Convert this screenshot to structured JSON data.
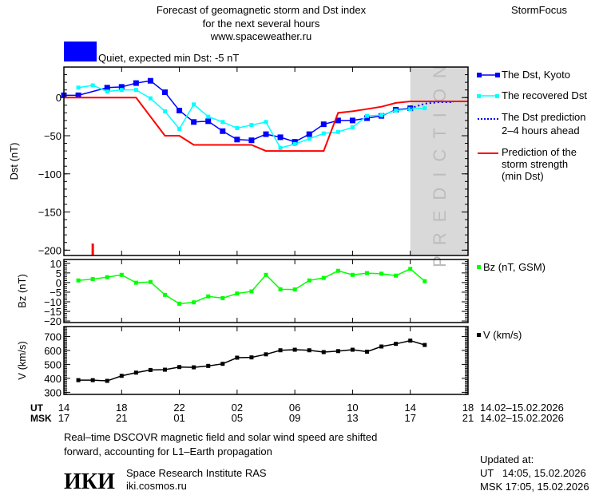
{
  "header": {
    "title_line1": "Forecast of geomagnetic storm and Dst index",
    "title_line2": "for the next several hours",
    "site": "www.spaceweather.ru",
    "brand": "StormFocus",
    "status_text": "Quiet, expected min Dst: -5 nT",
    "status_color": "#0000ff"
  },
  "chart_data": [
    {
      "type": "line",
      "ylabel": "Dst (nT)",
      "ylim": [
        -207,
        40
      ],
      "yticks": [
        0,
        -50,
        -100,
        -150,
        -200
      ],
      "ytick_labels": [
        "0",
        "−50",
        "−100",
        "−150",
        "−200"
      ],
      "xlim": [
        "2026-02-14T14:00",
        "2026-02-15T18:00"
      ],
      "prediction_zone": {
        "from": "2026-02-15T14:00",
        "to": "2026-02-15T18:00",
        "label": "PREDICTION",
        "color": "#d9d9d9"
      },
      "marker_time": "2026-02-14T16:00",
      "series": [
        {
          "name": "The Dst, Kyoto",
          "color": "#0000ff",
          "style": "line-large-markers",
          "points": [
            [
              "2026-02-14T14:00",
              3
            ],
            [
              "2026-02-14T15:00",
              3
            ],
            [
              "2026-02-14T17:00",
              13
            ],
            [
              "2026-02-14T18:00",
              14
            ],
            [
              "2026-02-14T19:00",
              19
            ],
            [
              "2026-02-14T20:00",
              22
            ],
            [
              "2026-02-14T21:00",
              7
            ],
            [
              "2026-02-14T22:00",
              -17
            ],
            [
              "2026-02-14T23:00",
              -32
            ],
            [
              "2026-02-15T00:00",
              -31
            ],
            [
              "2026-02-15T01:00",
              -44
            ],
            [
              "2026-02-15T02:00",
              -55
            ],
            [
              "2026-02-15T03:00",
              -56
            ],
            [
              "2026-02-15T04:00",
              -48
            ],
            [
              "2026-02-15T05:00",
              -52
            ],
            [
              "2026-02-15T06:00",
              -58
            ],
            [
              "2026-02-15T07:00",
              -48
            ],
            [
              "2026-02-15T08:00",
              -35
            ],
            [
              "2026-02-15T09:00",
              -30
            ],
            [
              "2026-02-15T10:00",
              -30
            ],
            [
              "2026-02-15T11:00",
              -27
            ],
            [
              "2026-02-15T12:00",
              -24
            ],
            [
              "2026-02-15T13:00",
              -16
            ],
            [
              "2026-02-15T14:00",
              -14
            ]
          ]
        },
        {
          "name": "The recovered Dst",
          "color": "#00ffff",
          "style": "line-small-markers",
          "points": [
            [
              "2026-02-14T15:00",
              13
            ],
            [
              "2026-02-14T16:00",
              16
            ],
            [
              "2026-02-14T17:00",
              8
            ],
            [
              "2026-02-14T18:00",
              10
            ],
            [
              "2026-02-14T19:00",
              10
            ],
            [
              "2026-02-14T20:00",
              -1
            ],
            [
              "2026-02-14T21:00",
              -18
            ],
            [
              "2026-02-14T22:00",
              -41
            ],
            [
              "2026-02-14T23:00",
              -9
            ],
            [
              "2026-02-15T00:00",
              -25
            ],
            [
              "2026-02-15T01:00",
              -32
            ],
            [
              "2026-02-15T02:00",
              -40
            ],
            [
              "2026-02-15T03:00",
              -36
            ],
            [
              "2026-02-15T04:00",
              -32
            ],
            [
              "2026-02-15T05:00",
              -66
            ],
            [
              "2026-02-15T06:00",
              -61
            ],
            [
              "2026-02-15T07:00",
              -54
            ],
            [
              "2026-02-15T08:00",
              -47
            ],
            [
              "2026-02-15T09:00",
              -45
            ],
            [
              "2026-02-15T10:00",
              -39
            ],
            [
              "2026-02-15T11:00",
              -24
            ],
            [
              "2026-02-15T12:00",
              -23
            ],
            [
              "2026-02-15T13:00",
              -17
            ],
            [
              "2026-02-15T14:00",
              -15
            ],
            [
              "2026-02-15T15:00",
              -14
            ]
          ]
        },
        {
          "name": "The Dst prediction 2–4 hours ahead",
          "name_line1": "The Dst prediction",
          "name_line2": "2–4 hours ahead",
          "color": "#0000ff",
          "style": "dotted",
          "points": [
            [
              "2026-02-15T14:00",
              -14
            ],
            [
              "2026-02-15T15:00",
              -8
            ],
            [
              "2026-02-15T16:00",
              -6
            ],
            [
              "2026-02-15T17:00",
              -6
            ]
          ]
        },
        {
          "name": "Prediction of the storm strength (min Dst)",
          "name_line1": "Prediction of the",
          "name_line2": "storm strength",
          "name_line3": "(min Dst)",
          "color": "#ff0000",
          "style": "line",
          "points": [
            [
              "2026-02-14T14:00",
              0
            ],
            [
              "2026-02-14T19:00",
              0
            ],
            [
              "2026-02-14T21:00",
              -50
            ],
            [
              "2026-02-14T22:00",
              -50
            ],
            [
              "2026-02-14T23:00",
              -62
            ],
            [
              "2026-02-15T03:00",
              -62
            ],
            [
              "2026-02-15T04:00",
              -70
            ],
            [
              "2026-02-15T08:00",
              -70
            ],
            [
              "2026-02-15T09:00",
              -20
            ],
            [
              "2026-02-15T10:00",
              -18
            ],
            [
              "2026-02-15T11:00",
              -15
            ],
            [
              "2026-02-15T12:00",
              -12
            ],
            [
              "2026-02-15T13:00",
              -7
            ],
            [
              "2026-02-15T14:00",
              -5
            ],
            [
              "2026-02-15T18:00",
              -5
            ]
          ]
        }
      ]
    },
    {
      "type": "line",
      "ylabel": "Bz (nT)",
      "ylim": [
        -20.8,
        12
      ],
      "yticks": [
        10,
        5,
        0,
        -5,
        -10,
        -15,
        -20
      ],
      "ytick_labels": [
        "10",
        "5",
        "0",
        "−5",
        "−10",
        "−15",
        "−20"
      ],
      "series": [
        {
          "name": "Bz (nT, GSM)",
          "color": "#00ff00",
          "points": [
            [
              "2026-02-14T15:00",
              1.1
            ],
            [
              "2026-02-14T16:00",
              1.8
            ],
            [
              "2026-02-14T17:00",
              2.8
            ],
            [
              "2026-02-14T18:00",
              4.0
            ],
            [
              "2026-02-14T19:00",
              -0.1
            ],
            [
              "2026-02-14T20:00",
              0.3
            ],
            [
              "2026-02-14T21:00",
              -6.4
            ],
            [
              "2026-02-14T22:00",
              -11
            ],
            [
              "2026-02-14T23:00",
              -10.3
            ],
            [
              "2026-02-15T00:00",
              -7.2
            ],
            [
              "2026-02-15T01:00",
              -8.1
            ],
            [
              "2026-02-15T02:00",
              -5.7
            ],
            [
              "2026-02-15T03:00",
              -4.6
            ],
            [
              "2026-02-15T04:00",
              4.0
            ],
            [
              "2026-02-15T05:00",
              -3.5
            ],
            [
              "2026-02-15T06:00",
              -3.6
            ],
            [
              "2026-02-15T07:00",
              1.1
            ],
            [
              "2026-02-15T08:00",
              2.4
            ],
            [
              "2026-02-15T09:00",
              6.1
            ],
            [
              "2026-02-15T10:00",
              4.0
            ],
            [
              "2026-02-15T11:00",
              4.9
            ],
            [
              "2026-02-15T12:00",
              4.6
            ],
            [
              "2026-02-15T13:00",
              3.6
            ],
            [
              "2026-02-15T14:00",
              7.1
            ],
            [
              "2026-02-15T15:00",
              0.7
            ]
          ]
        }
      ]
    },
    {
      "type": "line",
      "ylabel": "V (km/s)",
      "ylim": [
        285,
        771
      ],
      "yticks": [
        700,
        600,
        500,
        400,
        300
      ],
      "ytick_labels": [
        "700",
        "600",
        "500",
        "400",
        "300"
      ],
      "series": [
        {
          "name": "V (km/s)",
          "color": "#000000",
          "points": [
            [
              "2026-02-14T15:00",
              387
            ],
            [
              "2026-02-14T16:00",
              387
            ],
            [
              "2026-02-14T17:00",
              382
            ],
            [
              "2026-02-14T18:00",
              418
            ],
            [
              "2026-02-14T19:00",
              441
            ],
            [
              "2026-02-14T20:00",
              460
            ],
            [
              "2026-02-14T21:00",
              462
            ],
            [
              "2026-02-14T22:00",
              481
            ],
            [
              "2026-02-14T23:00",
              479
            ],
            [
              "2026-02-15T00:00",
              489
            ],
            [
              "2026-02-15T01:00",
              504
            ],
            [
              "2026-02-15T02:00",
              548
            ],
            [
              "2026-02-15T03:00",
              550
            ],
            [
              "2026-02-15T04:00",
              572
            ],
            [
              "2026-02-15T05:00",
              601
            ],
            [
              "2026-02-15T06:00",
              605
            ],
            [
              "2026-02-15T07:00",
              601
            ],
            [
              "2026-02-15T08:00",
              588
            ],
            [
              "2026-02-15T09:00",
              595
            ],
            [
              "2026-02-15T10:00",
              605
            ],
            [
              "2026-02-15T11:00",
              591
            ],
            [
              "2026-02-15T12:00",
              628
            ],
            [
              "2026-02-15T13:00",
              647
            ],
            [
              "2026-02-15T14:00",
              670
            ],
            [
              "2026-02-15T15:00",
              639
            ]
          ]
        }
      ]
    }
  ],
  "xaxis": {
    "ut_label": "UT",
    "msk_label": "MSK",
    "ut_ticks": [
      "14",
      "18",
      "22",
      "02",
      "06",
      "10",
      "14",
      "18"
    ],
    "msk_ticks": [
      "17",
      "21",
      "01",
      "05",
      "09",
      "13",
      "17",
      "21"
    ],
    "ut_dates": "14.02–15.02.2026",
    "msk_dates": "14.02–15.02.2026"
  },
  "footer": {
    "note_line1": "Real–time DSCOVR magnetic field and solar wind speed are shifted",
    "note_line2": "forward, accounting for L1–Earth propagation",
    "logo": "ИКИ",
    "institute": "Space Research Institute RAS",
    "institute_site": "iki.cosmos.ru",
    "updated_label": "Updated at:",
    "updated_ut": "UT   14:05, 15.02.2026",
    "updated_msk": "MSK 17:05, 15.02.2026"
  }
}
